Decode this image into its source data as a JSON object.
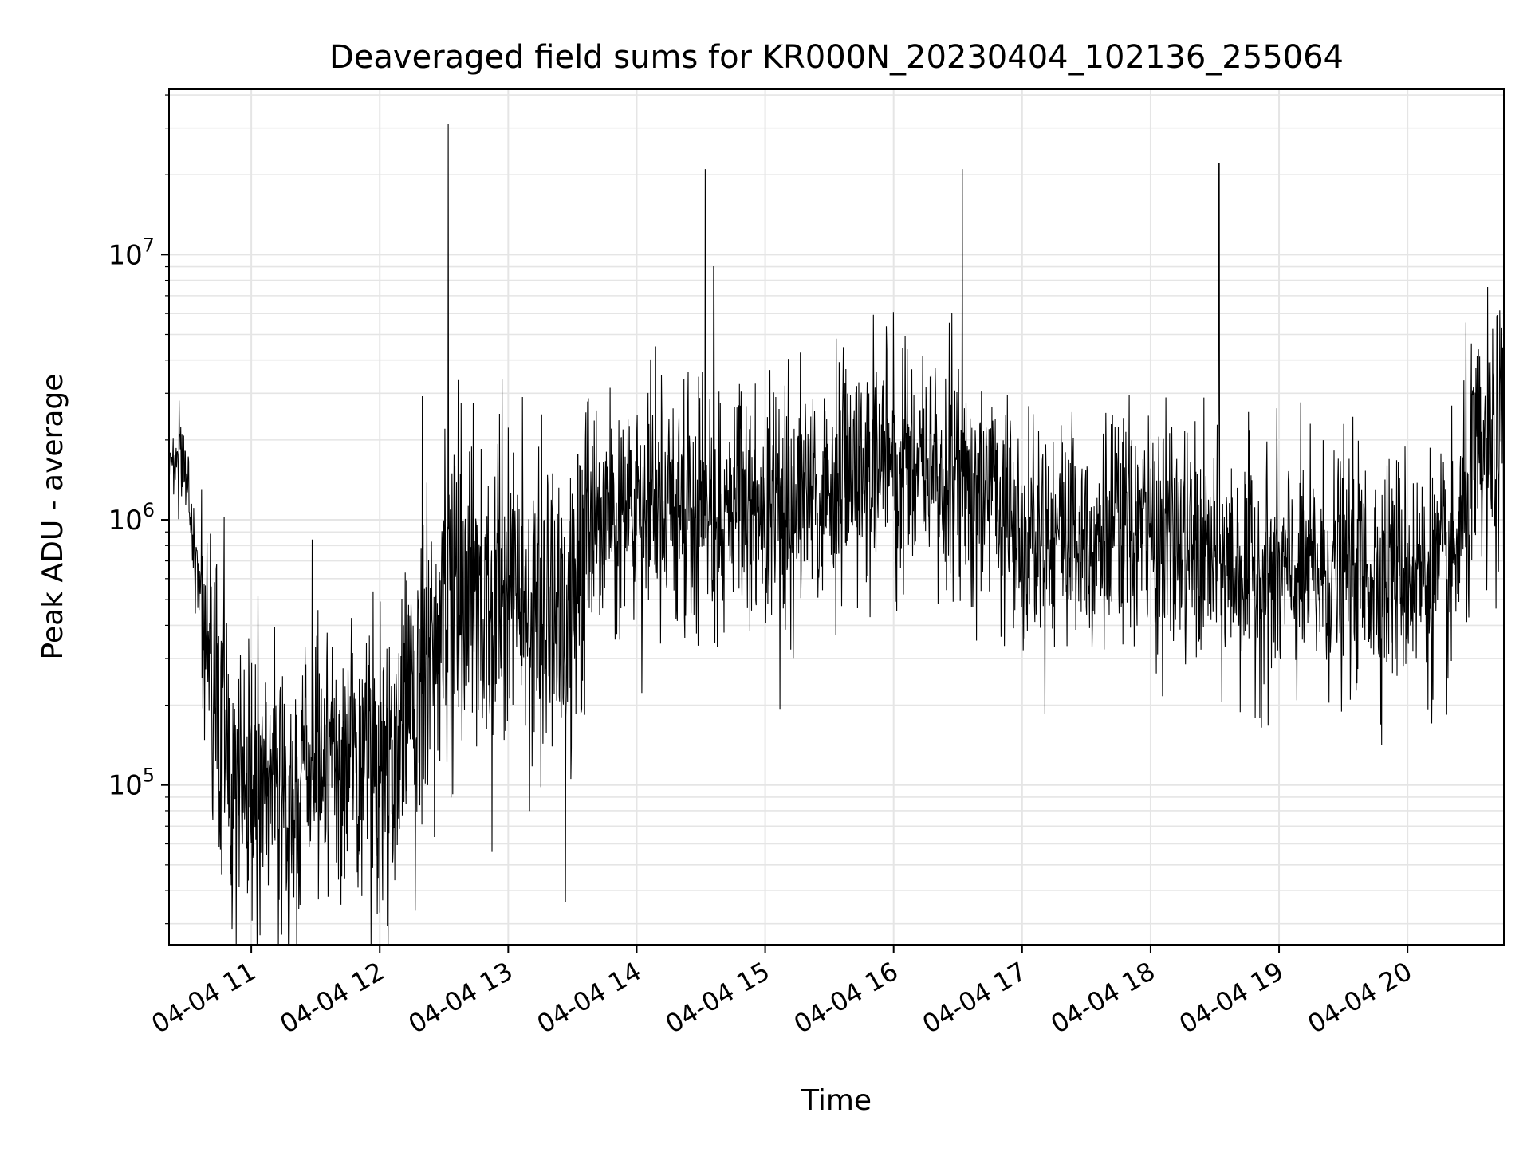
{
  "chart_data": {
    "type": "line",
    "title": "Deaveraged field sums for KR000N_20230404_102136_255064",
    "xlabel": "Time",
    "ylabel": "Peak ADU - average",
    "yscale": "log",
    "ylim": [
      25000,
      42000000
    ],
    "xlim": [
      "2023-04-04 10:21:36",
      "2023-04-04 20:45:00"
    ],
    "grid": true,
    "line_color": "#000000",
    "grid_color": "#e5e5e5",
    "x_ticks": [
      {
        "label": "04-04 11",
        "time": "2023-04-04 11:00"
      },
      {
        "label": "04-04 12",
        "time": "2023-04-04 12:00"
      },
      {
        "label": "04-04 13",
        "time": "2023-04-04 13:00"
      },
      {
        "label": "04-04 14",
        "time": "2023-04-04 14:00"
      },
      {
        "label": "04-04 15",
        "time": "2023-04-04 15:00"
      },
      {
        "label": "04-04 16",
        "time": "2023-04-04 16:00"
      },
      {
        "label": "04-04 17",
        "time": "2023-04-04 17:00"
      },
      {
        "label": "04-04 18",
        "time": "2023-04-04 18:00"
      },
      {
        "label": "04-04 19",
        "time": "2023-04-04 19:00"
      },
      {
        "label": "04-04 20",
        "time": "2023-04-04 20:00"
      }
    ],
    "y_ticks": [
      {
        "base": "10",
        "exp": "5",
        "value": 100000
      },
      {
        "base": "10",
        "exp": "6",
        "value": 1000000
      },
      {
        "base": "10",
        "exp": "7",
        "value": 10000000
      }
    ],
    "series": [
      {
        "x": [
          "2023-04-04 10:21:36",
          "2023-04-04 10:30",
          "2023-04-04 10:35",
          "2023-04-04 10:40",
          "2023-04-04 10:45",
          "2023-04-04 10:50",
          "2023-04-04 11:00",
          "2023-04-04 11:15",
          "2023-04-04 11:30",
          "2023-04-04 11:45",
          "2023-04-04 12:00",
          "2023-04-04 12:15",
          "2023-04-04 12:30",
          "2023-04-04 12:45",
          "2023-04-04 13:00",
          "2023-04-04 13:15",
          "2023-04-04 13:30",
          "2023-04-04 13:40",
          "2023-04-04 14:00",
          "2023-04-04 14:30",
          "2023-04-04 15:00",
          "2023-04-04 15:30",
          "2023-04-04 16:00",
          "2023-04-04 16:30",
          "2023-04-04 17:00",
          "2023-04-04 17:30",
          "2023-04-04 18:00",
          "2023-04-04 18:30",
          "2023-04-04 19:00",
          "2023-04-04 19:30",
          "2023-04-04 20:00",
          "2023-04-04 20:20",
          "2023-04-04 20:30",
          "2023-04-04 20:45"
        ],
        "y": [
          1600000,
          1500000,
          600000,
          300000,
          200000,
          110000,
          100000,
          90000,
          110000,
          120000,
          100000,
          200000,
          400000,
          500000,
          500000,
          450000,
          420000,
          900000,
          1000000,
          1100000,
          1100000,
          1300000,
          1700000,
          1500000,
          1000000,
          900000,
          900000,
          700000,
          600000,
          650000,
          650000,
          600000,
          1400000,
          2000000
        ]
      }
    ],
    "spikes": [
      {
        "x": "2023-04-04 12:32",
        "y": 31000000
      },
      {
        "x": "2023-04-04 14:32",
        "y": 21000000
      },
      {
        "x": "2023-04-04 14:36",
        "y": 9000000
      },
      {
        "x": "2023-04-04 16:32",
        "y": 21000000
      },
      {
        "x": "2023-04-04 18:32",
        "y": 22000000
      }
    ]
  }
}
